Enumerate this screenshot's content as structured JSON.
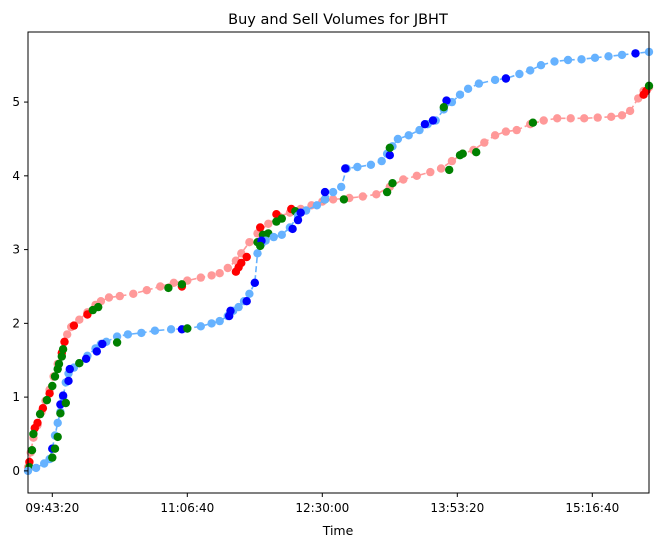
{
  "chart_data": {
    "type": "scatter",
    "title": "Buy and Sell Volumes for JBHT",
    "xlabel": "Time",
    "ylabel": "",
    "x_ticks": [
      "09:43:20",
      "11:06:40",
      "12:30:00",
      "13:53:20",
      "15:16:40"
    ],
    "x_tick_values_s": [
      35000,
      40000,
      45000,
      50000,
      55000
    ],
    "xlim_s": [
      34100,
      57100
    ],
    "y_ticks": [
      "0",
      "1",
      "2",
      "3",
      "4",
      "5"
    ],
    "ylim": [
      -0.3,
      5.95
    ],
    "grid": false,
    "legend": "none",
    "colors": {
      "buy_line": "#66b2ff",
      "sell_line": "#ff9999",
      "buy_highlight": "#0000ff",
      "sell_highlight": "#ff0000",
      "neutral_highlight": "#008000"
    },
    "series": [
      {
        "role": "buy",
        "color": "#66b2ff",
        "style": "dashed line with markers",
        "points": [
          [
            34100,
            0.0
          ],
          [
            34400,
            0.04
          ],
          [
            34700,
            0.1
          ],
          [
            34900,
            0.16
          ],
          [
            35000,
            0.3
          ],
          [
            35100,
            0.48
          ],
          [
            35200,
            0.65
          ],
          [
            35300,
            0.8
          ],
          [
            35400,
            1.0
          ],
          [
            35500,
            1.2
          ],
          [
            35600,
            1.32
          ],
          [
            35800,
            1.4
          ],
          [
            36000,
            1.46
          ],
          [
            36300,
            1.56
          ],
          [
            36600,
            1.66
          ],
          [
            36800,
            1.72
          ],
          [
            37000,
            1.75
          ],
          [
            37400,
            1.82
          ],
          [
            37800,
            1.85
          ],
          [
            38300,
            1.87
          ],
          [
            38800,
            1.9
          ],
          [
            39400,
            1.92
          ],
          [
            40000,
            1.93
          ],
          [
            40500,
            1.96
          ],
          [
            40900,
            2.0
          ],
          [
            41200,
            2.03
          ],
          [
            41500,
            2.1
          ],
          [
            41700,
            2.17
          ],
          [
            41900,
            2.22
          ],
          [
            42100,
            2.3
          ],
          [
            42300,
            2.4
          ],
          [
            42500,
            2.55
          ],
          [
            42600,
            2.95
          ],
          [
            42750,
            3.08
          ],
          [
            42900,
            3.12
          ],
          [
            43200,
            3.17
          ],
          [
            43500,
            3.2
          ],
          [
            43800,
            3.3
          ],
          [
            44100,
            3.46
          ],
          [
            44400,
            3.53
          ],
          [
            44800,
            3.6
          ],
          [
            45100,
            3.68
          ],
          [
            45400,
            3.78
          ],
          [
            45700,
            3.85
          ],
          [
            45900,
            4.1
          ],
          [
            46300,
            4.12
          ],
          [
            46800,
            4.15
          ],
          [
            47200,
            4.2
          ],
          [
            47400,
            4.3
          ],
          [
            47600,
            4.4
          ],
          [
            47800,
            4.5
          ],
          [
            48200,
            4.55
          ],
          [
            48600,
            4.62
          ],
          [
            48900,
            4.7
          ],
          [
            49200,
            4.75
          ],
          [
            49500,
            4.9
          ],
          [
            49800,
            5.0
          ],
          [
            50100,
            5.1
          ],
          [
            50400,
            5.18
          ],
          [
            50800,
            5.25
          ],
          [
            51400,
            5.3
          ],
          [
            51800,
            5.32
          ],
          [
            52300,
            5.38
          ],
          [
            52700,
            5.43
          ],
          [
            53100,
            5.5
          ],
          [
            53600,
            5.55
          ],
          [
            54100,
            5.57
          ],
          [
            54600,
            5.58
          ],
          [
            55100,
            5.6
          ],
          [
            55600,
            5.62
          ],
          [
            56100,
            5.64
          ],
          [
            56600,
            5.66
          ],
          [
            57100,
            5.68
          ]
        ],
        "highlights": [
          {
            "color": "blue",
            "points": [
              [
                35000,
                0.3
              ],
              [
                35300,
                0.9
              ],
              [
                35400,
                1.02
              ],
              [
                35600,
                1.22
              ],
              [
                35650,
                1.38
              ],
              [
                36250,
                1.52
              ],
              [
                36650,
                1.62
              ],
              [
                36850,
                1.72
              ],
              [
                39800,
                1.92
              ],
              [
                41550,
                2.1
              ],
              [
                41600,
                2.17
              ],
              [
                42200,
                2.3
              ],
              [
                42500,
                2.55
              ],
              [
                42750,
                3.12
              ],
              [
                43900,
                3.28
              ],
              [
                44100,
                3.4
              ],
              [
                44200,
                3.5
              ],
              [
                45100,
                3.78
              ],
              [
                45850,
                4.1
              ],
              [
                47500,
                4.28
              ],
              [
                48800,
                4.7
              ],
              [
                49100,
                4.75
              ],
              [
                49600,
                5.02
              ],
              [
                51800,
                5.32
              ],
              [
                56600,
                5.66
              ]
            ]
          },
          {
            "color": "green",
            "points": [
              [
                35000,
                0.18
              ],
              [
                35100,
                0.3
              ],
              [
                35200,
                0.46
              ],
              [
                35300,
                0.78
              ],
              [
                35500,
                0.92
              ],
              [
                36000,
                1.46
              ],
              [
                37400,
                1.74
              ],
              [
                40000,
                1.93
              ],
              [
                42700,
                3.05
              ],
              [
                47500,
                4.38
              ],
              [
                49500,
                4.93
              ]
            ]
          }
        ]
      },
      {
        "role": "sell",
        "color": "#ff9999",
        "style": "dashed line with markers",
        "points": [
          [
            34100,
            0.05
          ],
          [
            34200,
            0.25
          ],
          [
            34300,
            0.45
          ],
          [
            34450,
            0.62
          ],
          [
            34600,
            0.8
          ],
          [
            34750,
            0.95
          ],
          [
            34900,
            1.1
          ],
          [
            35050,
            1.28
          ],
          [
            35200,
            1.45
          ],
          [
            35350,
            1.6
          ],
          [
            35450,
            1.75
          ],
          [
            35550,
            1.85
          ],
          [
            35700,
            1.95
          ],
          [
            36000,
            2.05
          ],
          [
            36300,
            2.15
          ],
          [
            36600,
            2.25
          ],
          [
            36800,
            2.3
          ],
          [
            37100,
            2.35
          ],
          [
            37500,
            2.37
          ],
          [
            38000,
            2.4
          ],
          [
            38500,
            2.45
          ],
          [
            39000,
            2.5
          ],
          [
            39500,
            2.55
          ],
          [
            40000,
            2.58
          ],
          [
            40500,
            2.62
          ],
          [
            40900,
            2.65
          ],
          [
            41200,
            2.68
          ],
          [
            41500,
            2.75
          ],
          [
            41800,
            2.85
          ],
          [
            42000,
            2.95
          ],
          [
            42300,
            3.1
          ],
          [
            42600,
            3.22
          ],
          [
            43000,
            3.35
          ],
          [
            43400,
            3.45
          ],
          [
            43800,
            3.5
          ],
          [
            44200,
            3.55
          ],
          [
            44600,
            3.6
          ],
          [
            45000,
            3.65
          ],
          [
            45400,
            3.68
          ],
          [
            46000,
            3.7
          ],
          [
            46500,
            3.72
          ],
          [
            47000,
            3.75
          ],
          [
            47500,
            3.85
          ],
          [
            48000,
            3.95
          ],
          [
            48500,
            4.0
          ],
          [
            49000,
            4.05
          ],
          [
            49400,
            4.1
          ],
          [
            49800,
            4.2
          ],
          [
            50200,
            4.3
          ],
          [
            50600,
            4.35
          ],
          [
            51000,
            4.45
          ],
          [
            51400,
            4.55
          ],
          [
            51800,
            4.6
          ],
          [
            52200,
            4.62
          ],
          [
            52700,
            4.7
          ],
          [
            53200,
            4.75
          ],
          [
            53700,
            4.78
          ],
          [
            54200,
            4.78
          ],
          [
            54700,
            4.78
          ],
          [
            55200,
            4.79
          ],
          [
            55700,
            4.8
          ],
          [
            56100,
            4.82
          ],
          [
            56400,
            4.88
          ],
          [
            56700,
            5.05
          ],
          [
            56900,
            5.15
          ],
          [
            57100,
            5.2
          ]
        ],
        "highlights": [
          {
            "color": "red",
            "points": [
              [
                34150,
                0.12
              ],
              [
                34350,
                0.58
              ],
              [
                34450,
                0.65
              ],
              [
                34650,
                0.85
              ],
              [
                34900,
                1.05
              ],
              [
                35350,
                1.6
              ],
              [
                35450,
                1.75
              ],
              [
                35800,
                1.97
              ],
              [
                36300,
                2.12
              ],
              [
                39800,
                2.5
              ],
              [
                41800,
                2.7
              ],
              [
                41900,
                2.76
              ],
              [
                42000,
                2.82
              ],
              [
                42200,
                2.9
              ],
              [
                42700,
                3.3
              ],
              [
                43300,
                3.48
              ],
              [
                43850,
                3.55
              ],
              [
                56900,
                5.1
              ],
              [
                57000,
                5.15
              ]
            ]
          },
          {
            "color": "green",
            "points": [
              [
                34150,
                0.05
              ],
              [
                34250,
                0.28
              ],
              [
                34300,
                0.5
              ],
              [
                34550,
                0.77
              ],
              [
                34800,
                0.96
              ],
              [
                35000,
                1.15
              ],
              [
                35100,
                1.28
              ],
              [
                35200,
                1.38
              ],
              [
                35250,
                1.45
              ],
              [
                35350,
                1.55
              ],
              [
                35400,
                1.65
              ],
              [
                36500,
                2.18
              ],
              [
                36700,
                2.22
              ],
              [
                39300,
                2.48
              ],
              [
                39800,
                2.53
              ],
              [
                42600,
                3.1
              ],
              [
                42800,
                3.2
              ],
              [
                43000,
                3.22
              ],
              [
                43300,
                3.38
              ],
              [
                43500,
                3.42
              ],
              [
                44000,
                3.52
              ],
              [
                45100,
                3.68
              ],
              [
                45800,
                3.68
              ],
              [
                47400,
                3.78
              ],
              [
                47600,
                3.9
              ],
              [
                49700,
                4.08
              ],
              [
                50100,
                4.28
              ],
              [
                50200,
                4.3
              ],
              [
                50700,
                4.32
              ],
              [
                52800,
                4.72
              ],
              [
                57100,
                5.22
              ]
            ]
          }
        ]
      }
    ]
  }
}
